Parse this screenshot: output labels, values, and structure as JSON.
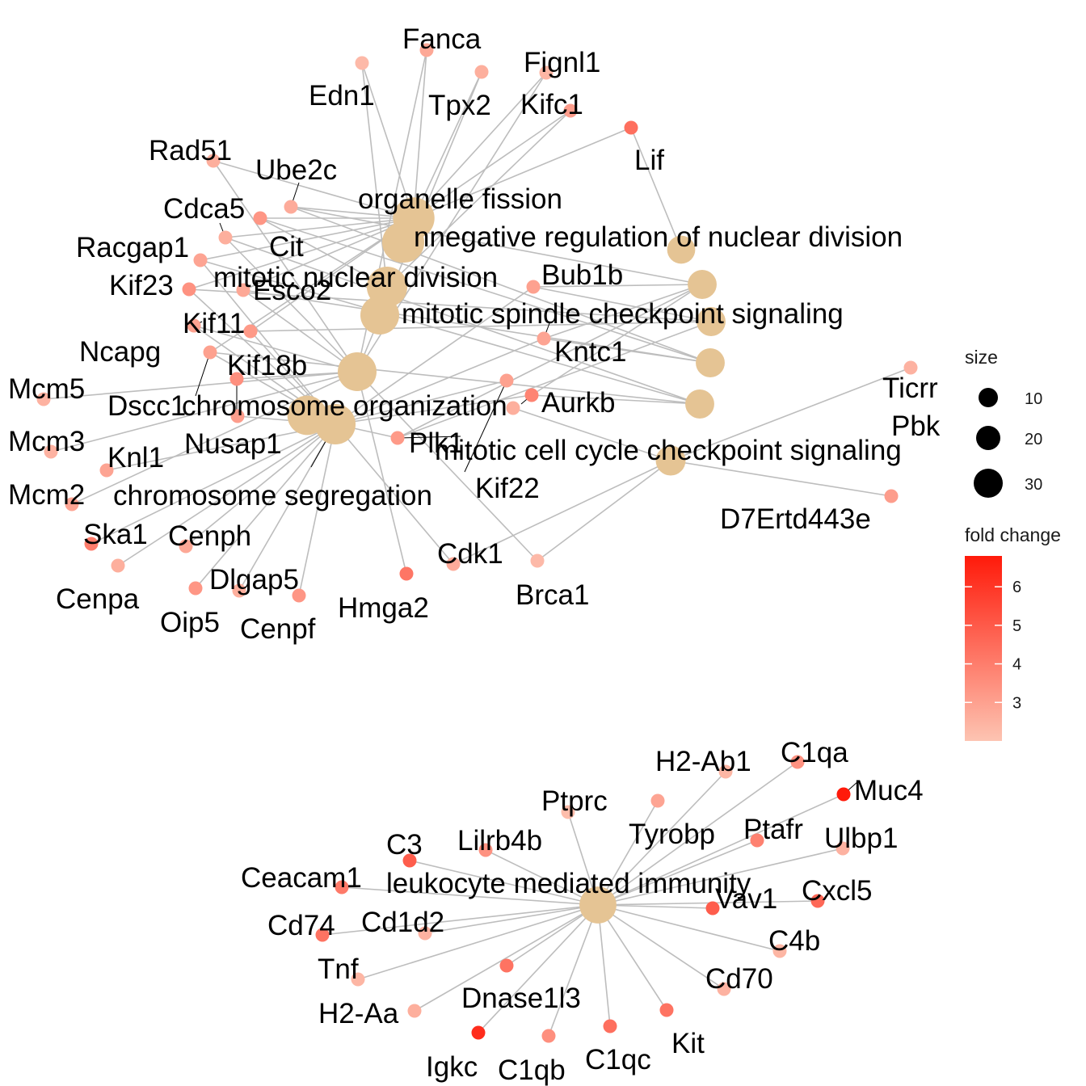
{
  "colors": {
    "edge": "#bdbdbd",
    "category_node": "#e5c494",
    "fold_low": "#fdc4b2",
    "fold_high": "#ff1a0a",
    "background": "#ffffff"
  },
  "categories": [
    {
      "id": "organelle fission",
      "label": "organelle fission",
      "size": 30
    },
    {
      "id": "negative regulation of nuclear division",
      "label": "nnegative regulation of nuclear division",
      "size": 10
    },
    {
      "id": "mitotic nuclear division",
      "label": "mitotic nuclear division",
      "size": 28
    },
    {
      "id": "mitotic spindle checkpoint signaling",
      "label": "mitotic spindle checkpoint signaling",
      "size": 11
    },
    {
      "id": "mitotic spindle hidden 1",
      "label": "",
      "size": 11
    },
    {
      "id": "mitotic spindle hidden 2",
      "label": "",
      "size": 11
    },
    {
      "id": "mitotic spindle hidden 3",
      "label": "",
      "size": 11
    },
    {
      "id": "mitotic spindle hidden 4",
      "label": "",
      "size": 11
    },
    {
      "id": "chromosome organization",
      "label": "chromosome organization",
      "size": 25
    },
    {
      "id": "nuclear division hidden",
      "label": "",
      "size": 28
    },
    {
      "id": "chromosome segregation",
      "label": "chromosome segregation",
      "size": 28
    },
    {
      "id": "mitotic cell cycle checkpoint signaling",
      "label": "mitotic cell cycle checkpoint signaling",
      "size": 12
    },
    {
      "id": "leukocyte mediated immunity",
      "label": "leukocyte mediated immunity",
      "size": 22
    }
  ],
  "genes": [
    {
      "name": "Fanca",
      "fc": 2.8,
      "links": [
        "organelle fission",
        "chromosome organization"
      ]
    },
    {
      "name": "Fignl1",
      "fc": 2.4,
      "links": [
        "organelle fission",
        "chromosome organization"
      ]
    },
    {
      "name": "Edn1",
      "fc": 2.3,
      "links": [
        "organelle fission",
        "mitotic nuclear division"
      ]
    },
    {
      "name": "Tpx2",
      "fc": 2.6,
      "links": [
        "organelle fission",
        "chromosome organization"
      ]
    },
    {
      "name": "Kifc1",
      "fc": 3.1,
      "links": [
        "organelle fission",
        "mitotic nuclear division"
      ]
    },
    {
      "name": "Lif",
      "fc": 4.4,
      "links": [
        "organelle fission",
        "negative regulation of nuclear division"
      ]
    },
    {
      "name": "Rad51",
      "fc": 2.6,
      "links": [
        "organelle fission",
        "chromosome organization"
      ]
    },
    {
      "name": "Ube2c",
      "fc": 2.7,
      "links": [
        "organelle fission",
        "mitotic spindle checkpoint signaling"
      ]
    },
    {
      "name": "Cdca5",
      "fc": 2.6,
      "links": [
        "organelle fission",
        "chromosome organization"
      ]
    },
    {
      "name": "Cit",
      "fc": 3.3,
      "links": [
        "organelle fission",
        "mitotic nuclear division"
      ]
    },
    {
      "name": "Racgap1",
      "fc": 2.9,
      "links": [
        "organelle fission",
        "chromosome segregation"
      ]
    },
    {
      "name": "Kif23",
      "fc": 3.4,
      "links": [
        "organelle fission",
        "chromosome segregation"
      ]
    },
    {
      "name": "Esco2",
      "fc": 2.8,
      "links": [
        "organelle fission",
        "chromosome organization"
      ]
    },
    {
      "name": "Kif11",
      "fc": 3.2,
      "links": [
        "organelle fission",
        "chromosome segregation"
      ]
    },
    {
      "name": "Bub1b",
      "fc": 3.0,
      "links": [
        "mitotic spindle checkpoint signaling",
        "chromosome segregation"
      ]
    },
    {
      "name": "Ncapg",
      "fc": 3.0,
      "links": [
        "chromosome organization",
        "chromosome segregation"
      ]
    },
    {
      "name": "Kntc1",
      "fc": 2.9,
      "links": [
        "mitotic spindle checkpoint signaling",
        "chromosome segregation"
      ]
    },
    {
      "name": "Kif18b",
      "fc": 3.0,
      "links": [
        "organelle fission",
        "chromosome segregation"
      ]
    },
    {
      "name": "Dscc1",
      "fc": 3.5,
      "links": [
        "chromosome organization"
      ]
    },
    {
      "name": "Mcm5",
      "fc": 2.5,
      "links": [
        "chromosome organization"
      ]
    },
    {
      "name": "Aurkb",
      "fc": 3.8,
      "links": [
        "mitotic spindle checkpoint signaling",
        "chromosome segregation"
      ]
    },
    {
      "name": "Ticrr",
      "fc": 2.5,
      "links": [
        "mitotic cell cycle checkpoint signaling"
      ]
    },
    {
      "name": "Nusap1",
      "fc": 3.1,
      "links": [
        "chromosome segregation"
      ]
    },
    {
      "name": "Pbk",
      "fc": 2.6,
      "links": [
        "mitotic cell cycle checkpoint signaling"
      ]
    },
    {
      "name": "Mcm3",
      "fc": 2.5,
      "links": [
        "chromosome organization"
      ]
    },
    {
      "name": "Plk1",
      "fc": 3.2,
      "links": [
        "chromosome segregation",
        "mitotic spindle checkpoint signaling"
      ]
    },
    {
      "name": "Knl1",
      "fc": 2.9,
      "links": [
        "chromosome segregation"
      ]
    },
    {
      "name": "Mcm2",
      "fc": 2.9,
      "links": [
        "chromosome organization"
      ]
    },
    {
      "name": "Kif22",
      "fc": 3.0,
      "links": [
        "chromosome segregation"
      ]
    },
    {
      "name": "D7Ertd443e",
      "fc": 3.1,
      "links": [
        "mitotic cell cycle checkpoint signaling"
      ]
    },
    {
      "name": "Ska1",
      "fc": 4.0,
      "links": [
        "chromosome segregation"
      ]
    },
    {
      "name": "Cenph",
      "fc": 2.8,
      "links": [
        "chromosome segregation"
      ]
    },
    {
      "name": "Cenpa",
      "fc": 2.6,
      "links": [
        "chromosome segregation"
      ]
    },
    {
      "name": "Dlgap5",
      "fc": 2.6,
      "links": [
        "chromosome segregation"
      ]
    },
    {
      "name": "Cdk1",
      "fc": 2.7,
      "links": [
        "chromosome segregation",
        "mitotic cell cycle checkpoint signaling"
      ]
    },
    {
      "name": "Brca1",
      "fc": 2.3,
      "links": [
        "chromosome organization",
        "mitotic cell cycle checkpoint signaling"
      ]
    },
    {
      "name": "Oip5",
      "fc": 3.3,
      "links": [
        "chromosome segregation"
      ]
    },
    {
      "name": "Cenpf",
      "fc": 3.3,
      "links": [
        "chromosome segregation"
      ]
    },
    {
      "name": "Hmga2",
      "fc": 4.2,
      "links": [
        "chromosome organization"
      ]
    },
    {
      "name": "H2-Ab1",
      "fc": 2.4,
      "links": [
        "leukocyte mediated immunity"
      ]
    },
    {
      "name": "C1qa",
      "fc": 3.4,
      "links": [
        "leukocyte mediated immunity"
      ]
    },
    {
      "name": "Muc4",
      "fc": 6.8,
      "links": [
        "leukocyte mediated immunity"
      ]
    },
    {
      "name": "Ptprc",
      "fc": 2.2,
      "links": [
        "leukocyte mediated immunity"
      ]
    },
    {
      "name": "Tyrobp",
      "fc": 2.9,
      "links": [
        "leukocyte mediated immunity"
      ]
    },
    {
      "name": "Ptafr",
      "fc": 3.9,
      "links": [
        "leukocyte mediated immunity"
      ]
    },
    {
      "name": "Ulbp1",
      "fc": 2.5,
      "links": [
        "leukocyte mediated immunity"
      ]
    },
    {
      "name": "C3",
      "fc": 4.9,
      "links": [
        "leukocyte mediated immunity"
      ]
    },
    {
      "name": "Lilrb4b",
      "fc": 3.4,
      "links": [
        "leukocyte mediated immunity"
      ]
    },
    {
      "name": "Ceacam1",
      "fc": 4.1,
      "links": [
        "leukocyte mediated immunity"
      ]
    },
    {
      "name": "Vav1",
      "fc": 4.9,
      "links": [
        "leukocyte mediated immunity"
      ]
    },
    {
      "name": "Cxcl5",
      "fc": 4.6,
      "links": [
        "leukocyte mediated immunity"
      ]
    },
    {
      "name": "Cd74",
      "fc": 4.3,
      "links": [
        "leukocyte mediated immunity"
      ]
    },
    {
      "name": "Cd1d2",
      "fc": 2.5,
      "links": [
        "leukocyte mediated immunity"
      ]
    },
    {
      "name": "C4b",
      "fc": 2.4,
      "links": [
        "leukocyte mediated immunity"
      ]
    },
    {
      "name": "Tnf",
      "fc": 2.4,
      "links": [
        "leukocyte mediated immunity"
      ]
    },
    {
      "name": "Cd70",
      "fc": 2.5,
      "links": [
        "leukocyte mediated immunity"
      ]
    },
    {
      "name": "Dnase1l3",
      "fc": 4.3,
      "links": [
        "leukocyte mediated immunity"
      ]
    },
    {
      "name": "H2-Aa",
      "fc": 2.6,
      "links": [
        "leukocyte mediated immunity"
      ]
    },
    {
      "name": "Kit",
      "fc": 4.3,
      "links": [
        "leukocyte mediated immunity"
      ]
    },
    {
      "name": "Igkc",
      "fc": 6.3,
      "links": [
        "leukocyte mediated immunity"
      ]
    },
    {
      "name": "C1qb",
      "fc": 3.5,
      "links": [
        "leukocyte mediated immunity"
      ]
    },
    {
      "name": "C1qc",
      "fc": 4.4,
      "links": [
        "leukocyte mediated immunity"
      ]
    }
  ],
  "legend": {
    "size_title": "size",
    "size_breaks": [
      10,
      20,
      30
    ],
    "fold_title": "fold change",
    "fold_breaks": [
      3,
      4,
      5,
      6
    ],
    "fold_range": [
      2.0,
      6.8
    ]
  }
}
